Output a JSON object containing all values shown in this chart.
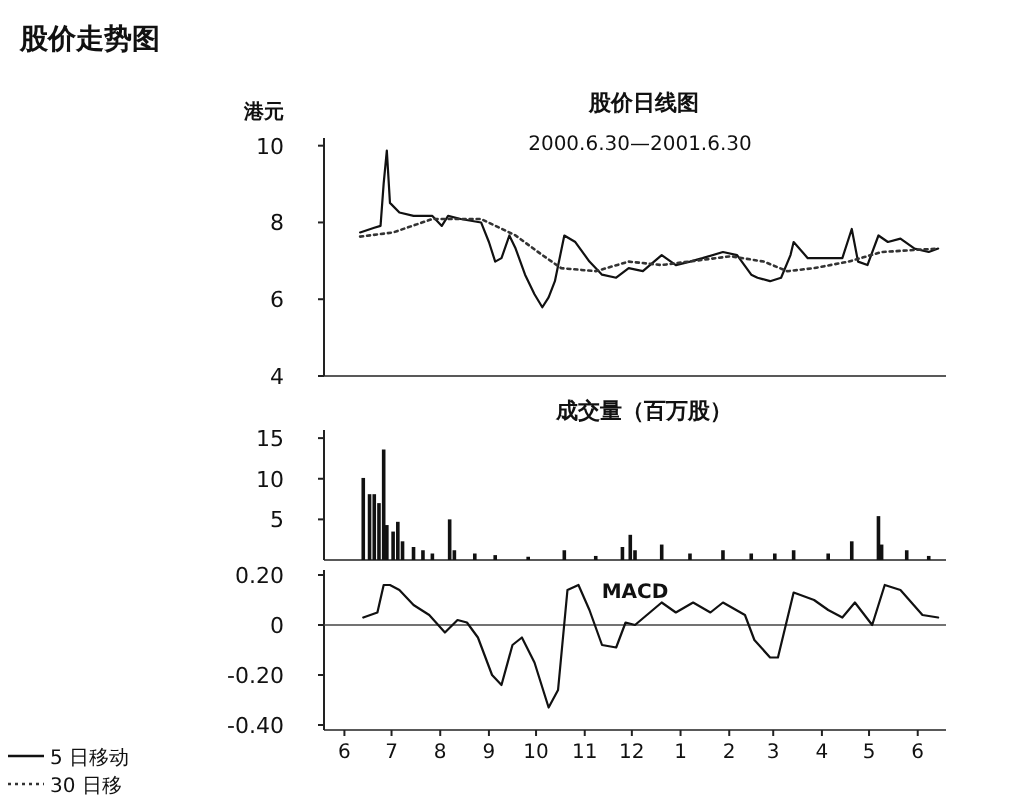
{
  "chart_data": [
    {
      "type": "line",
      "title": "股价日线图",
      "subtitle": "2000.6.30—2001.6.30",
      "ylabel": "港元",
      "annotations": [
        "股价走势图"
      ],
      "xlim": [
        "2000-05-19",
        "2001-06-19"
      ],
      "ylim": [
        4,
        10.2
      ],
      "yticks": [
        4,
        6,
        8,
        10
      ],
      "tick_labels": "y",
      "legend": "bottom left",
      "series": [
        {
          "name": "5 日移动",
          "color": "#111111",
          "line_style": "solid",
          "x": [
            "2000-06-11",
            "2000-06-20",
            "2000-06-24",
            "2000-06-26",
            "2000-06-28",
            "2000-06-30",
            "2000-07-06",
            "2000-07-15",
            "2000-07-27",
            "2000-08-02",
            "2000-08-06",
            "2000-08-14",
            "2000-08-27",
            "2000-09-01",
            "2000-09-05",
            "2000-09-09",
            "2000-09-14",
            "2000-09-18",
            "2000-09-24",
            "2000-09-30",
            "2000-10-05",
            "2000-10-09",
            "2000-10-13",
            "2000-10-19",
            "2000-10-26",
            "2000-11-04",
            "2000-11-12",
            "2000-11-21",
            "2000-11-29",
            "2000-12-08",
            "2000-12-20",
            "2000-12-29",
            "2001-01-07",
            "2001-01-15",
            "2001-01-28",
            "2001-02-06",
            "2001-02-15",
            "2001-02-19",
            "2001-02-27",
            "2001-03-06",
            "2001-03-12",
            "2001-03-14",
            "2001-03-23",
            "2001-04-05",
            "2001-04-14",
            "2001-04-20",
            "2001-04-24",
            "2001-04-30",
            "2001-05-07",
            "2001-05-13",
            "2001-05-21",
            "2001-05-30",
            "2001-06-08",
            "2001-06-14"
          ],
          "values": [
            7.74,
            7.86,
            7.91,
            9.02,
            9.87,
            8.51,
            8.26,
            8.17,
            8.17,
            7.91,
            8.17,
            8.09,
            8.0,
            7.49,
            6.98,
            7.07,
            7.66,
            7.32,
            6.64,
            6.13,
            5.79,
            6.05,
            6.47,
            7.66,
            7.49,
            6.98,
            6.64,
            6.56,
            6.81,
            6.73,
            7.15,
            6.89,
            6.98,
            7.07,
            7.23,
            7.15,
            6.64,
            6.56,
            6.47,
            6.56,
            7.15,
            7.49,
            7.07,
            7.07,
            7.07,
            7.83,
            6.98,
            6.89,
            7.66,
            7.49,
            7.58,
            7.32,
            7.23,
            7.32
          ]
        },
        {
          "name": "30 日移",
          "color": "#333333",
          "line_style": "dotted",
          "x": [
            "2000-06-11",
            "2000-07-02",
            "2000-07-27",
            "2000-08-27",
            "2000-09-18",
            "2000-10-05",
            "2000-10-17",
            "2000-11-08",
            "2000-11-29",
            "2000-12-20",
            "2001-02-02",
            "2001-02-23",
            "2001-03-10",
            "2001-03-27",
            "2001-04-18",
            "2001-05-09",
            "2001-06-14"
          ],
          "values": [
            7.63,
            7.74,
            8.09,
            8.09,
            7.66,
            7.15,
            6.81,
            6.73,
            6.98,
            6.89,
            7.12,
            6.98,
            6.73,
            6.81,
            6.98,
            7.23,
            7.32
          ]
        }
      ]
    },
    {
      "type": "bar",
      "title": "成交量（百万股）",
      "xlim": [
        "2000-05-19",
        "2001-06-19"
      ],
      "ylim": [
        0,
        16
      ],
      "yticks": [
        5,
        10,
        15
      ],
      "tick_labels": "y",
      "color": "#111111",
      "x": [
        "2000-06-13",
        "2000-06-17",
        "2000-06-20",
        "2000-06-23",
        "2000-06-26",
        "2000-06-28",
        "2000-07-02",
        "2000-07-05",
        "2000-07-08",
        "2000-07-15",
        "2000-07-21",
        "2000-07-27",
        "2000-08-07",
        "2000-08-10",
        "2000-08-23",
        "2000-09-05",
        "2000-09-26",
        "2000-10-19",
        "2000-11-08",
        "2000-11-25",
        "2000-11-30",
        "2000-12-03",
        "2000-12-20",
        "2001-01-07",
        "2001-01-28",
        "2001-02-15",
        "2001-03-02",
        "2001-03-14",
        "2001-04-05",
        "2001-04-20",
        "2001-05-07",
        "2001-05-09",
        "2001-05-25",
        "2001-06-08"
      ],
      "values": [
        10.1,
        8.1,
        8.1,
        7.0,
        13.6,
        4.3,
        3.5,
        4.7,
        2.3,
        1.6,
        1.2,
        0.8,
        5.0,
        1.2,
        0.8,
        0.6,
        0.4,
        1.2,
        0.5,
        1.6,
        3.1,
        1.2,
        1.9,
        0.8,
        1.2,
        0.8,
        0.8,
        1.2,
        0.8,
        2.3,
        5.4,
        1.9,
        1.2,
        0.5
      ]
    },
    {
      "type": "line",
      "xlim": [
        "2000-05-19",
        "2001-06-19"
      ],
      "ylim": [
        -0.42,
        0.22
      ],
      "yticks": [
        {
          "value": 0.2,
          "label": "0.20"
        },
        0,
        {
          "value": -0.2,
          "label": "-0.20"
        },
        {
          "value": -0.4,
          "label": "-0.40"
        }
      ],
      "xticks": [
        {
          "value": "2000-06-01",
          "label": "6"
        },
        {
          "value": "2000-07-01",
          "label": "7"
        },
        {
          "value": "2000-08-01",
          "label": "8"
        },
        {
          "value": "2000-09-01",
          "label": "9"
        },
        {
          "value": "2000-10-01",
          "label": "10"
        },
        {
          "value": "2000-11-01",
          "label": "11"
        },
        {
          "value": "2000-12-01",
          "label": "12"
        },
        {
          "value": "2001-01-01",
          "label": "1"
        },
        {
          "value": "2001-02-01",
          "label": "2"
        },
        {
          "value": "2001-03-01",
          "label": "3"
        },
        {
          "value": "2001-04-01",
          "label": "4"
        },
        {
          "value": "2001-05-01",
          "label": "5"
        },
        {
          "value": "2001-06-01",
          "label": "6"
        }
      ],
      "annotations": [
        "MACD"
      ],
      "ref_lines": [
        {
          "axis": "y",
          "value": 0
        }
      ],
      "series": [
        {
          "color": "#111111",
          "x": [
            "2000-06-13",
            "2000-06-22",
            "2000-06-26",
            "2000-06-30",
            "2000-07-06",
            "2000-07-15",
            "2000-07-25",
            "2000-08-04",
            "2000-08-12",
            "2000-08-18",
            "2000-08-25",
            "2000-09-03",
            "2000-09-09",
            "2000-09-16",
            "2000-09-22",
            "2000-09-30",
            "2000-10-09",
            "2000-10-15",
            "2000-10-21",
            "2000-10-28",
            "2000-11-04",
            "2000-11-12",
            "2000-11-21",
            "2000-11-27",
            "2000-12-03",
            "2000-12-20",
            "2000-12-29",
            "2001-01-09",
            "2001-01-20",
            "2001-01-28",
            "2001-02-11",
            "2001-02-17",
            "2001-02-27",
            "2001-03-04",
            "2001-03-14",
            "2001-03-27",
            "2001-04-05",
            "2001-04-14",
            "2001-04-22",
            "2001-05-03",
            "2001-05-11",
            "2001-05-21",
            "2001-06-04",
            "2001-06-14"
          ],
          "values": [
            0.03,
            0.05,
            0.16,
            0.16,
            0.14,
            0.08,
            0.04,
            -0.03,
            0.02,
            0.01,
            -0.05,
            -0.2,
            -0.24,
            -0.08,
            -0.05,
            -0.15,
            -0.33,
            -0.26,
            0.14,
            0.16,
            0.06,
            -0.08,
            -0.09,
            0.01,
            0,
            0.09,
            0.05,
            0.09,
            0.05,
            0.09,
            0.04,
            -0.06,
            -0.13,
            -0.13,
            0.13,
            0.1,
            0.06,
            0.03,
            0.09,
            0,
            0.16,
            0.14,
            0.04,
            0.03
          ]
        }
      ]
    }
  ]
}
